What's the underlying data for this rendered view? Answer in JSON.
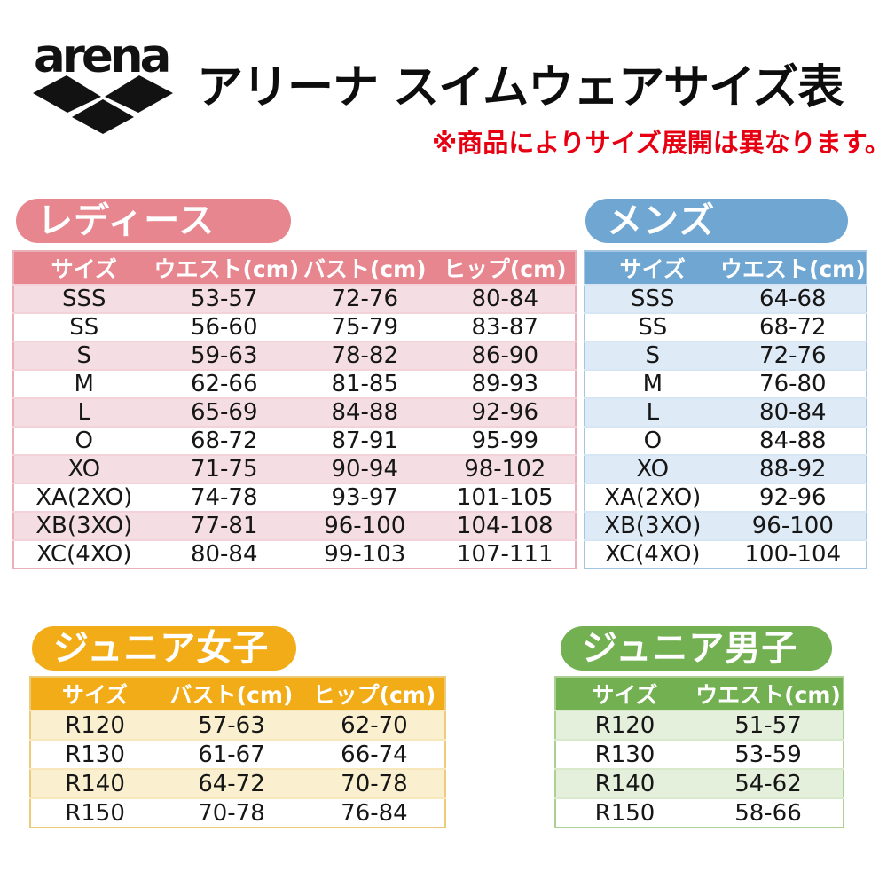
{
  "logo": {
    "brand": "arena"
  },
  "header": {
    "title": "アリーナ スイムウェアサイズ表",
    "note": "※商品によりサイズ展開は異なります。",
    "note_color": "#e60012",
    "title_color": "#0d0d0d"
  },
  "sections": [
    {
      "id": "ladies",
      "title": "レディース",
      "colors": {
        "accent": "#e8868f",
        "row_alt": "#f4dee3",
        "row": "#ffffff",
        "border": "#eab0b9",
        "separator": "#f3d3d9",
        "header_text": "#ffffff"
      },
      "columns": [
        "サイズ",
        "ウエスト(cm)",
        "バスト(cm)",
        "ヒップ(cm)"
      ],
      "rows": [
        [
          "SSS",
          "53-57",
          "72-76",
          "80-84"
        ],
        [
          "SS",
          "56-60",
          "75-79",
          "83-87"
        ],
        [
          "S",
          "59-63",
          "78-82",
          "86-90"
        ],
        [
          "M",
          "62-66",
          "81-85",
          "89-93"
        ],
        [
          "L",
          "65-69",
          "84-88",
          "92-96"
        ],
        [
          "O",
          "68-72",
          "87-91",
          "95-99"
        ],
        [
          "XO",
          "71-75",
          "90-94",
          "98-102"
        ],
        [
          "XA(2XO)",
          "74-78",
          "93-97",
          "101-105"
        ],
        [
          "XB(3XO)",
          "77-81",
          "96-100",
          "104-108"
        ],
        [
          "XC(4XO)",
          "80-84",
          "99-103",
          "107-111"
        ]
      ]
    },
    {
      "id": "mens",
      "title": "メンズ",
      "colors": {
        "accent": "#6fa6d2",
        "row_alt": "#deeaf6",
        "row": "#ffffff",
        "border": "#a3c6e4",
        "separator": "#d7e6f4",
        "header_text": "#ffffff"
      },
      "columns": [
        "サイズ",
        "ウエスト(cm)"
      ],
      "rows": [
        [
          "SSS",
          "64-68"
        ],
        [
          "SS",
          "68-72"
        ],
        [
          "S",
          "72-76"
        ],
        [
          "M",
          "76-80"
        ],
        [
          "L",
          "80-84"
        ],
        [
          "O",
          "84-88"
        ],
        [
          "XO",
          "88-92"
        ],
        [
          "XA(2XO)",
          "92-96"
        ],
        [
          "XB(3XO)",
          "96-100"
        ],
        [
          "XC(4XO)",
          "100-104"
        ]
      ]
    },
    {
      "id": "junior-girls",
      "title": "ジュニア女子",
      "colors": {
        "accent": "#f2ac18",
        "row_alt": "#faf0d0",
        "row": "#ffffff",
        "border": "#edcb7c",
        "separator": "#f7e7bb",
        "header_text": "#ffffff"
      },
      "columns": [
        "サイズ",
        "バスト(cm)",
        "ヒップ(cm)"
      ],
      "rows": [
        [
          "R120",
          "57-63",
          "62-70"
        ],
        [
          "R130",
          "61-67",
          "66-74"
        ],
        [
          "R140",
          "64-72",
          "70-78"
        ],
        [
          "R150",
          "70-78",
          "76-84"
        ]
      ]
    },
    {
      "id": "junior-boys",
      "title": "ジュニア男子",
      "colors": {
        "accent": "#72b052",
        "row_alt": "#e4efdc",
        "row": "#ffffff",
        "border": "#accf93",
        "separator": "#d9e9cc",
        "header_text": "#ffffff"
      },
      "columns": [
        "サイズ",
        "ウエスト(cm)"
      ],
      "rows": [
        [
          "R120",
          "51-57"
        ],
        [
          "R130",
          "53-59"
        ],
        [
          "R140",
          "54-62"
        ],
        [
          "R150",
          "58-66"
        ]
      ]
    }
  ]
}
